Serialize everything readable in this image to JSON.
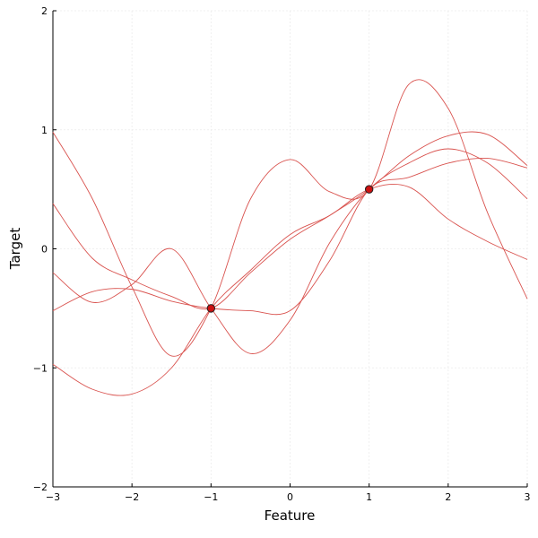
{
  "chart_data": {
    "type": "line",
    "title": "",
    "xlabel": "Feature",
    "ylabel": "Target",
    "xlim": [
      -3,
      3
    ],
    "ylim": [
      -2,
      2
    ],
    "xticks": [
      -3,
      -2,
      -1,
      0,
      1,
      2,
      3
    ],
    "yticks": [
      -2,
      -1,
      0,
      1,
      2
    ],
    "xtick_labels": [
      "−3",
      "−2",
      "−1",
      "0",
      "1",
      "2",
      "3"
    ],
    "ytick_labels": [
      "−2",
      "−1",
      "0",
      "1",
      "2"
    ],
    "grid": true,
    "line_color": "#d9534f",
    "point_color": "#cc1111",
    "x": [
      -3,
      -2.5,
      -2,
      -1.5,
      -1,
      -0.5,
      0,
      0.5,
      1,
      1.5,
      2,
      2.5,
      3
    ],
    "series": [
      {
        "values": [
          0.98,
          0.42,
          -0.32,
          -0.9,
          -0.5,
          0.42,
          0.75,
          0.48,
          0.5,
          1.38,
          1.18,
          0.3,
          -0.42
        ]
      },
      {
        "values": [
          0.38,
          -0.08,
          -0.26,
          -0.4,
          -0.5,
          -0.2,
          0.08,
          0.28,
          0.5,
          0.78,
          0.95,
          0.96,
          0.7
        ]
      },
      {
        "values": [
          -0.2,
          -0.45,
          -0.3,
          0.0,
          -0.5,
          -0.88,
          -0.6,
          0.05,
          0.5,
          0.72,
          0.84,
          0.72,
          0.42
        ]
      },
      {
        "values": [
          -0.52,
          -0.36,
          -0.34,
          -0.44,
          -0.5,
          -0.52,
          -0.52,
          -0.1,
          0.5,
          0.6,
          0.72,
          0.76,
          0.68
        ]
      },
      {
        "values": [
          -0.97,
          -1.18,
          -1.22,
          -1.0,
          -0.5,
          -0.18,
          0.12,
          0.28,
          0.5,
          0.52,
          0.25,
          0.06,
          -0.09
        ]
      }
    ],
    "points": [
      {
        "x": -1,
        "y": -0.5
      },
      {
        "x": 1,
        "y": 0.5
      }
    ]
  }
}
